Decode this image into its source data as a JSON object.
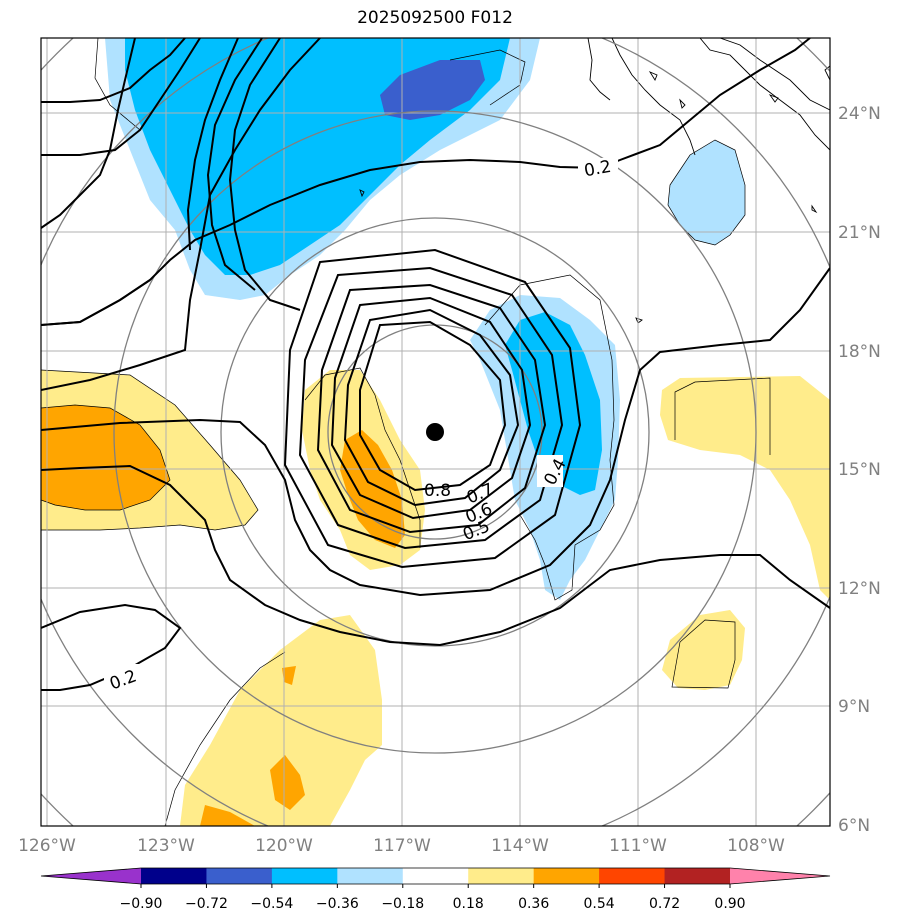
{
  "title": "2025092500 F012",
  "lat_labels": [
    "24°N",
    "21°N",
    "18°N",
    "15°N",
    "12°N",
    "9°N",
    "6°N"
  ],
  "lon_labels": [
    "126°W",
    "123°W",
    "120°W",
    "117°W",
    "114°W",
    "111°W",
    "108°W"
  ],
  "colorbar": {
    "colors": [
      "#9932cc",
      "#00008b",
      "#3a5fcd",
      "#00bfff",
      "#b0e2ff",
      "#ffffff",
      "#ffec8b",
      "#ffa500",
      "#ff4500",
      "#b22222",
      "#ff82ab"
    ],
    "labels": [
      "−0.90",
      "−0.72",
      "−0.54",
      "−0.36",
      "−0.18",
      "0.18",
      "0.36",
      "0.54",
      "0.72",
      "0.90"
    ]
  },
  "contour_labels": [
    "0.2",
    "0.2",
    "0.4",
    "0.5",
    "0.6",
    "0.7",
    "0.8"
  ],
  "storm_center": {
    "lat": 15.9,
    "lon": -116.2
  }
}
